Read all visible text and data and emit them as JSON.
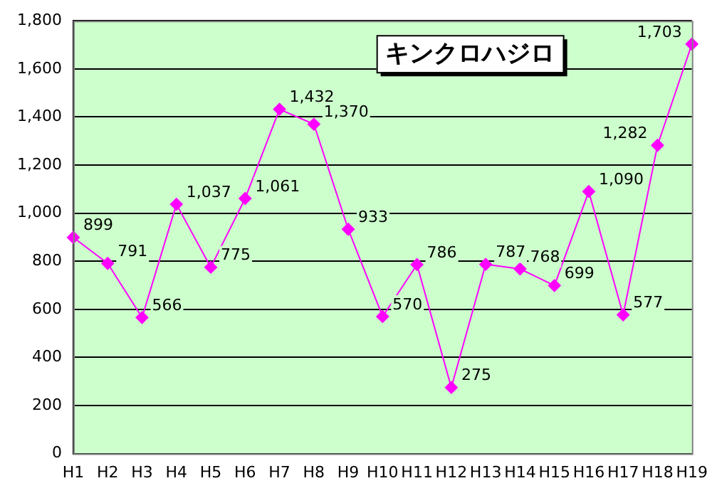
{
  "chart_data": {
    "type": "line",
    "title": "キンクロハジロ",
    "categories": [
      "H1",
      "H2",
      "H3",
      "H4",
      "H5",
      "H6",
      "H7",
      "H8",
      "H9",
      "H10",
      "H11",
      "H12",
      "H13",
      "H14",
      "H15",
      "H16",
      "H17",
      "H18",
      "H19"
    ],
    "series": [
      {
        "color": "#ff00ff",
        "values": [
          899,
          791,
          566,
          1037,
          775,
          1061,
          1432,
          1370,
          933,
          570,
          786,
          275,
          787,
          768,
          699,
          1090,
          577,
          1282,
          1703
        ],
        "value_labels": [
          "899",
          "791",
          "566",
          "1,037",
          "775",
          "1,061",
          "1,432",
          "1,370",
          "933",
          "570",
          "786",
          "275",
          "787",
          "768",
          "699",
          "1,090",
          "577",
          "1,282",
          "1,703"
        ]
      }
    ],
    "ylim": [
      0,
      1800
    ],
    "yticks": [
      {
        "value": 0,
        "label": "0"
      },
      {
        "value": 200,
        "label": "200"
      },
      {
        "value": 400,
        "label": "400"
      },
      {
        "value": 600,
        "label": "600"
      },
      {
        "value": 800,
        "label": "800"
      },
      {
        "value": 1000,
        "label": "1,000"
      },
      {
        "value": 1200,
        "label": "1,200"
      },
      {
        "value": 1400,
        "label": "1,400"
      },
      {
        "value": 1600,
        "label": "1,600"
      },
      {
        "value": 1800,
        "label": "1,800"
      }
    ],
    "grid": "y",
    "legend": false,
    "marker": "diamond",
    "line_style": "solid"
  }
}
